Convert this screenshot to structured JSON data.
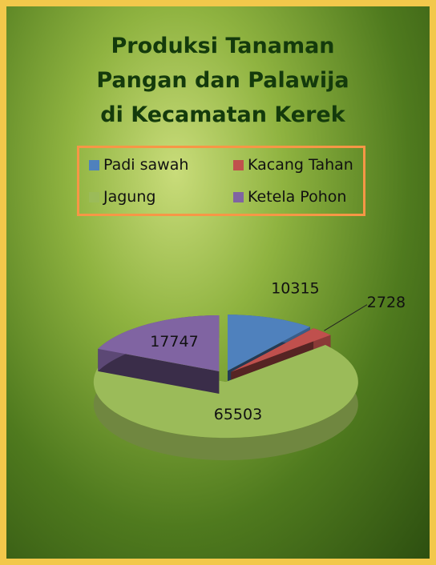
{
  "chart_data": {
    "type": "pie3d",
    "title": "Produksi Tanaman Pangan dan Palawija di Kecamatan Kerek",
    "categories": [
      "Padi sawah",
      "Kacang Tahan",
      "Jagung",
      "Ketela Pohon"
    ],
    "values": [
      10315,
      2728,
      65503,
      17747
    ],
    "colors": [
      "#4f81bd",
      "#c0504d",
      "#9bbb59",
      "#8064a2"
    ]
  }
}
